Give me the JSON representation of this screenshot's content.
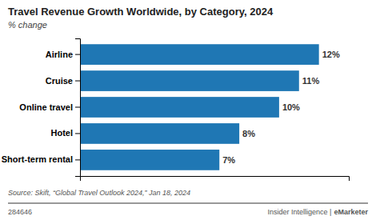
{
  "chart_data": {
    "type": "bar",
    "orientation": "horizontal",
    "title": "Travel Revenue Growth Worldwide, by Category, 2024",
    "subtitle": "% change",
    "categories": [
      "Airline",
      "Cruise",
      "Online travel",
      "Hotel",
      "Short-term rental"
    ],
    "values": [
      12,
      11,
      10,
      8,
      7
    ],
    "value_labels": [
      "12%",
      "11%",
      "10%",
      "8%",
      "7%"
    ],
    "data_labels": true,
    "xlim": [
      0,
      13.5
    ],
    "tick_labels": "y",
    "grid": false,
    "annotations": [
      "Source: Skift, “Global Travel Outlook 2024,” Jan 18, 2024",
      "284646",
      "Insider Intelligence |",
      "eMarketer"
    ]
  }
}
